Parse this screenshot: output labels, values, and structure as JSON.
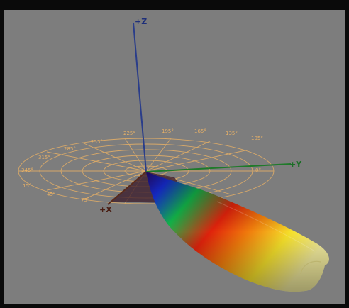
{
  "viewer": {
    "axes": {
      "z_label": "+Z",
      "y_label": "+Y",
      "x_label": "+X"
    },
    "polar_degree_labels": [
      "225°",
      "195°",
      "165°",
      "135°",
      "105°",
      "255°",
      "285°",
      "315°",
      "345°",
      "15°",
      "45°",
      "75°",
      "0°"
    ],
    "colors": {
      "background": "#7d7d7d",
      "grid": "#e7b066",
      "z_axis": "#2a3d8a",
      "y_axis": "#1f7a2a",
      "x_axis": "#5a2a1a"
    }
  }
}
